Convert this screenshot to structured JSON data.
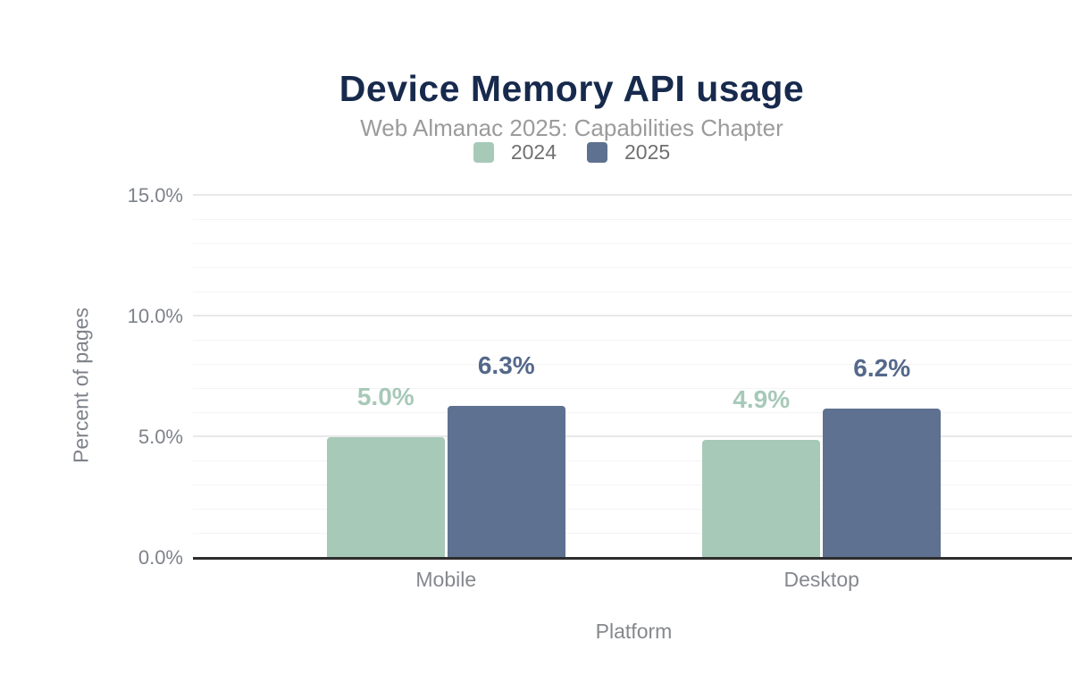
{
  "chart_data": {
    "type": "bar",
    "title": "Device Memory API usage",
    "subtitle": "Web Almanac 2025: Capabilities Chapter",
    "categories": [
      "Mobile",
      "Desktop"
    ],
    "series": [
      {
        "name": "2024",
        "values": [
          5.0,
          4.9
        ],
        "labels": [
          "5.0%",
          "4.9%"
        ],
        "color": "#a7c9b8",
        "label_color": "#a7c9b8"
      },
      {
        "name": "2025",
        "values": [
          6.3,
          6.2
        ],
        "labels": [
          "6.3%",
          "6.2%"
        ],
        "color": "#5f7190",
        "label_color": "#54688a"
      }
    ],
    "xlabel": "Platform",
    "ylabel": "Percent of pages",
    "ylim": [
      0,
      15
    ],
    "yticks": [
      {
        "value": 0,
        "label": "0.0%"
      },
      {
        "value": 5,
        "label": "5.0%"
      },
      {
        "value": 10,
        "label": "10.0%"
      },
      {
        "value": 15,
        "label": "15.0%"
      }
    ],
    "grid": {
      "minor_step": 1,
      "major_step": 5,
      "minor_color": "#f4f4f6",
      "major_color": "#e8e8ea"
    },
    "legend_position": "top",
    "colors": {
      "title": "#172a4d",
      "subtitle": "#9b9b9b",
      "axis_line": "#2d2d2d",
      "tick_text": "#7e828a",
      "background": "#ffffff"
    }
  }
}
